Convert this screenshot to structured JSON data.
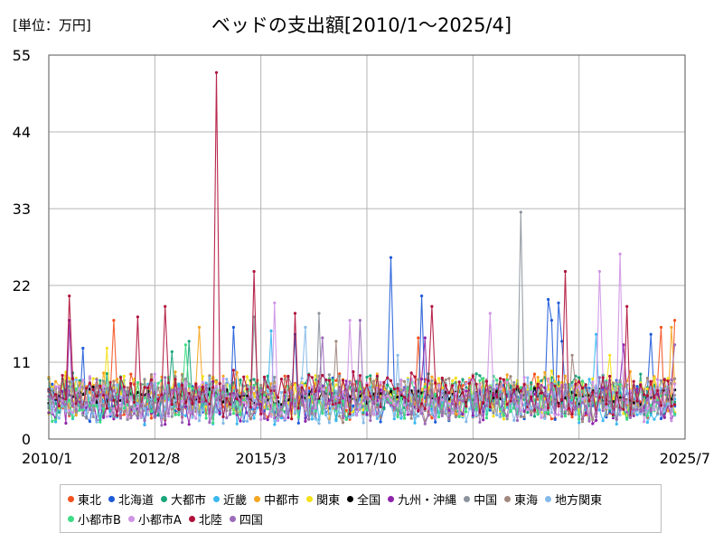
{
  "header": {
    "unit": "[単位：万円]",
    "title": "ベッドの支出額[2010/1～2025/4]"
  },
  "chart_data": {
    "type": "line",
    "title": "ベッドの支出額[2010/1～2025/4]",
    "ylabel": "[単位：万円]",
    "ylim": [
      0,
      55
    ],
    "yticks": [
      0,
      11,
      22,
      33,
      44,
      55
    ],
    "ytick_labels": [
      "0",
      "11",
      "22",
      "33",
      "44",
      "55"
    ],
    "x_start": "2010/1",
    "x_end": "2025/7",
    "xticks": [
      "2010/1",
      "2012/8",
      "2015/3",
      "2017/10",
      "2020/5",
      "2022/12",
      "2025/7"
    ],
    "grid": true,
    "legend_position": "bottom",
    "series": [
      {
        "name": "東北",
        "color": "#f4511e",
        "base": 5.5,
        "spikes": [
          [
            "2011/8",
            17
          ],
          [
            "2019/1",
            14.5
          ],
          [
            "2024/12",
            16
          ],
          [
            "2025/4",
            17
          ]
        ]
      },
      {
        "name": "北海道",
        "color": "#1e5bd8",
        "base": 5,
        "spikes": [
          [
            "2010/11",
            13
          ],
          [
            "2014/7",
            16
          ],
          [
            "2016/1",
            15
          ],
          [
            "2018/5",
            26
          ],
          [
            "2019/2",
            20.5
          ],
          [
            "2022/3",
            20
          ],
          [
            "2022/4",
            17
          ],
          [
            "2022/6",
            19.5
          ],
          [
            "2022/7",
            14
          ],
          [
            "2024/9",
            15
          ]
        ]
      },
      {
        "name": "大都市",
        "color": "#1aa57a",
        "base": 6,
        "spikes": [
          [
            "2013/6",
            14
          ],
          [
            "2013/1",
            12.5
          ]
        ]
      },
      {
        "name": "近畿",
        "color": "#3cb8f0",
        "base": 5,
        "spikes": [
          [
            "2015/6",
            15.5
          ],
          [
            "2023/5",
            15
          ]
        ]
      },
      {
        "name": "中都市",
        "color": "#f5a623",
        "base": 6,
        "spikes": [
          [
            "2013/9",
            16
          ],
          [
            "2025/3",
            16
          ]
        ]
      },
      {
        "name": "関東",
        "color": "#f5e11b",
        "base": 6,
        "spikes": [
          [
            "2011/6",
            13
          ],
          [
            "2023/9",
            12
          ]
        ]
      },
      {
        "name": "全国",
        "color": "#000000",
        "base": 6,
        "spikes": []
      },
      {
        "name": "九州・沖縄",
        "color": "#8e24aa",
        "base": 5,
        "spikes": [
          [
            "2010/7",
            17
          ],
          [
            "2019/3",
            14.5
          ],
          [
            "2024/1",
            13.5
          ]
        ]
      },
      {
        "name": "中国",
        "color": "#8c939c",
        "base": 5.5,
        "spikes": [
          [
            "2016/8",
            18
          ],
          [
            "2021/7",
            32.5
          ],
          [
            "2015/1",
            17.5
          ]
        ]
      },
      {
        "name": "東海",
        "color": "#a1887f",
        "base": 5.5,
        "spikes": [
          [
            "2017/1",
            14
          ],
          [
            "2022/10",
            12
          ]
        ]
      },
      {
        "name": "地方関東",
        "color": "#84b9e8",
        "base": 5,
        "spikes": [
          [
            "2016/4",
            16
          ],
          [
            "2018/7",
            12
          ]
        ]
      },
      {
        "name": "小都市B",
        "color": "#3ddc84",
        "base": 5.5,
        "spikes": [
          [
            "2013/5",
            13.5
          ]
        ]
      },
      {
        "name": "小都市A",
        "color": "#cf93e6",
        "base": 5.5,
        "spikes": [
          [
            "2015/7",
            19.5
          ],
          [
            "2020/10",
            18
          ],
          [
            "2023/6",
            24
          ],
          [
            "2023/12",
            26.5
          ],
          [
            "2017/5",
            17
          ]
        ]
      },
      {
        "name": "北陸",
        "color": "#b0103a",
        "base": 6,
        "spikes": [
          [
            "2010/7",
            20.5
          ],
          [
            "2012/3",
            17.5
          ],
          [
            "2012/11",
            19
          ],
          [
            "2014/2",
            52.5
          ],
          [
            "2015/1",
            24
          ],
          [
            "2016/1",
            18
          ],
          [
            "2019/5",
            19
          ],
          [
            "2022/8",
            24
          ],
          [
            "2024/2",
            19
          ]
        ]
      },
      {
        "name": "四国",
        "color": "#9c6bb8",
        "base": 5,
        "spikes": [
          [
            "2016/9",
            14.5
          ],
          [
            "2017/8",
            17
          ],
          [
            "2025/4",
            13.5
          ]
        ]
      }
    ]
  }
}
